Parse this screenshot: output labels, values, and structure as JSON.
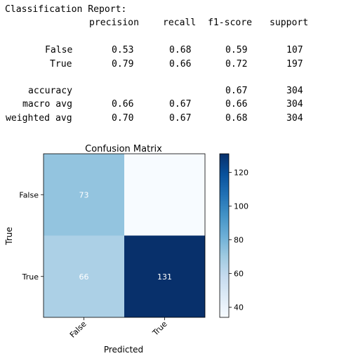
{
  "report": {
    "heading": "Classification Report:",
    "columns": [
      "precision",
      "recall",
      "f1-score",
      "support"
    ],
    "rows": [
      {
        "label": "False",
        "precision": "0.53",
        "recall": "0.68",
        "f1": "0.59",
        "support": "107"
      },
      {
        "label": "True",
        "precision": "0.79",
        "recall": "0.66",
        "f1": "0.72",
        "support": "197"
      },
      {
        "label": "accuracy",
        "precision": "",
        "recall": "",
        "f1": "0.67",
        "support": "304"
      },
      {
        "label": "macro avg",
        "precision": "0.66",
        "recall": "0.67",
        "f1": "0.66",
        "support": "304"
      },
      {
        "label": "weighted avg",
        "precision": "0.70",
        "recall": "0.67",
        "f1": "0.68",
        "support": "304"
      }
    ]
  },
  "chart_data": {
    "type": "heatmap",
    "title": "Confusion Matrix",
    "xlabel": "Predicted",
    "ylabel": "True",
    "x_categories": [
      "False",
      "True"
    ],
    "y_categories": [
      "False",
      "True"
    ],
    "values": [
      [
        73,
        34
      ],
      [
        66,
        131
      ]
    ],
    "colormap": "Blues",
    "colorbar": {
      "min": 34,
      "max": 131,
      "ticks": [
        40,
        60,
        80,
        100,
        120
      ]
    }
  }
}
